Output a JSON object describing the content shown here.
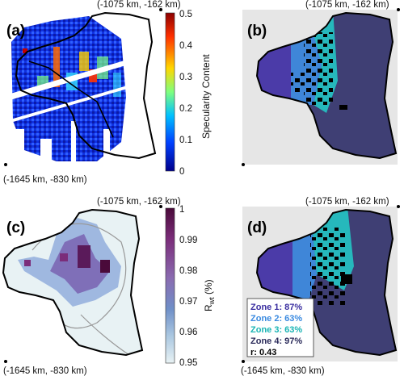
{
  "corner_labels": {
    "top_right": "(-1075 km, -162 km)",
    "bottom_left": "(-1645 km, -830 km)"
  },
  "panels": {
    "a": {
      "label": "(a)"
    },
    "b": {
      "label": "(b)"
    },
    "c": {
      "label": "(c)"
    },
    "d": {
      "label": "(d)"
    }
  },
  "colorbar_a": {
    "title": "Specularity Content",
    "ticks": [
      "0.5",
      "0.4",
      "0.3",
      "0.2",
      "0.1",
      "0"
    ],
    "colors": [
      "#8b0000",
      "#ff4000",
      "#ffd700",
      "#7fff7f",
      "#00bfff",
      "#0040ff",
      "#00008b"
    ]
  },
  "colorbar_c": {
    "title_main": "R",
    "title_sub": "wt",
    "title_unit": " (%)",
    "ticks": [
      "1",
      "0.99",
      "0.98",
      "0.97",
      "0.96",
      "0.95"
    ],
    "colors": [
      "#4a0a3a",
      "#7b2d7a",
      "#8a6bb0",
      "#6f8fc8",
      "#a9c6e0",
      "#e8f2f4"
    ]
  },
  "zones": {
    "items": [
      {
        "text": "Zone 1: 87%",
        "color": "#3a2ea0"
      },
      {
        "text": "Zone 2: 63%",
        "color": "#3a8ae0"
      },
      {
        "text": "Zone 3: 63%",
        "color": "#19b4b4"
      },
      {
        "text": "Zone 4: 97%",
        "color": "#2a2a5a"
      }
    ],
    "r_text": "r: 0.43"
  },
  "colors": {
    "zone1": "#4b3ba8",
    "zone2": "#3f86d8",
    "zone3": "#26b8bc",
    "zone4": "#3f3f74",
    "outside": "#e6e6e6",
    "water": "#000000"
  }
}
